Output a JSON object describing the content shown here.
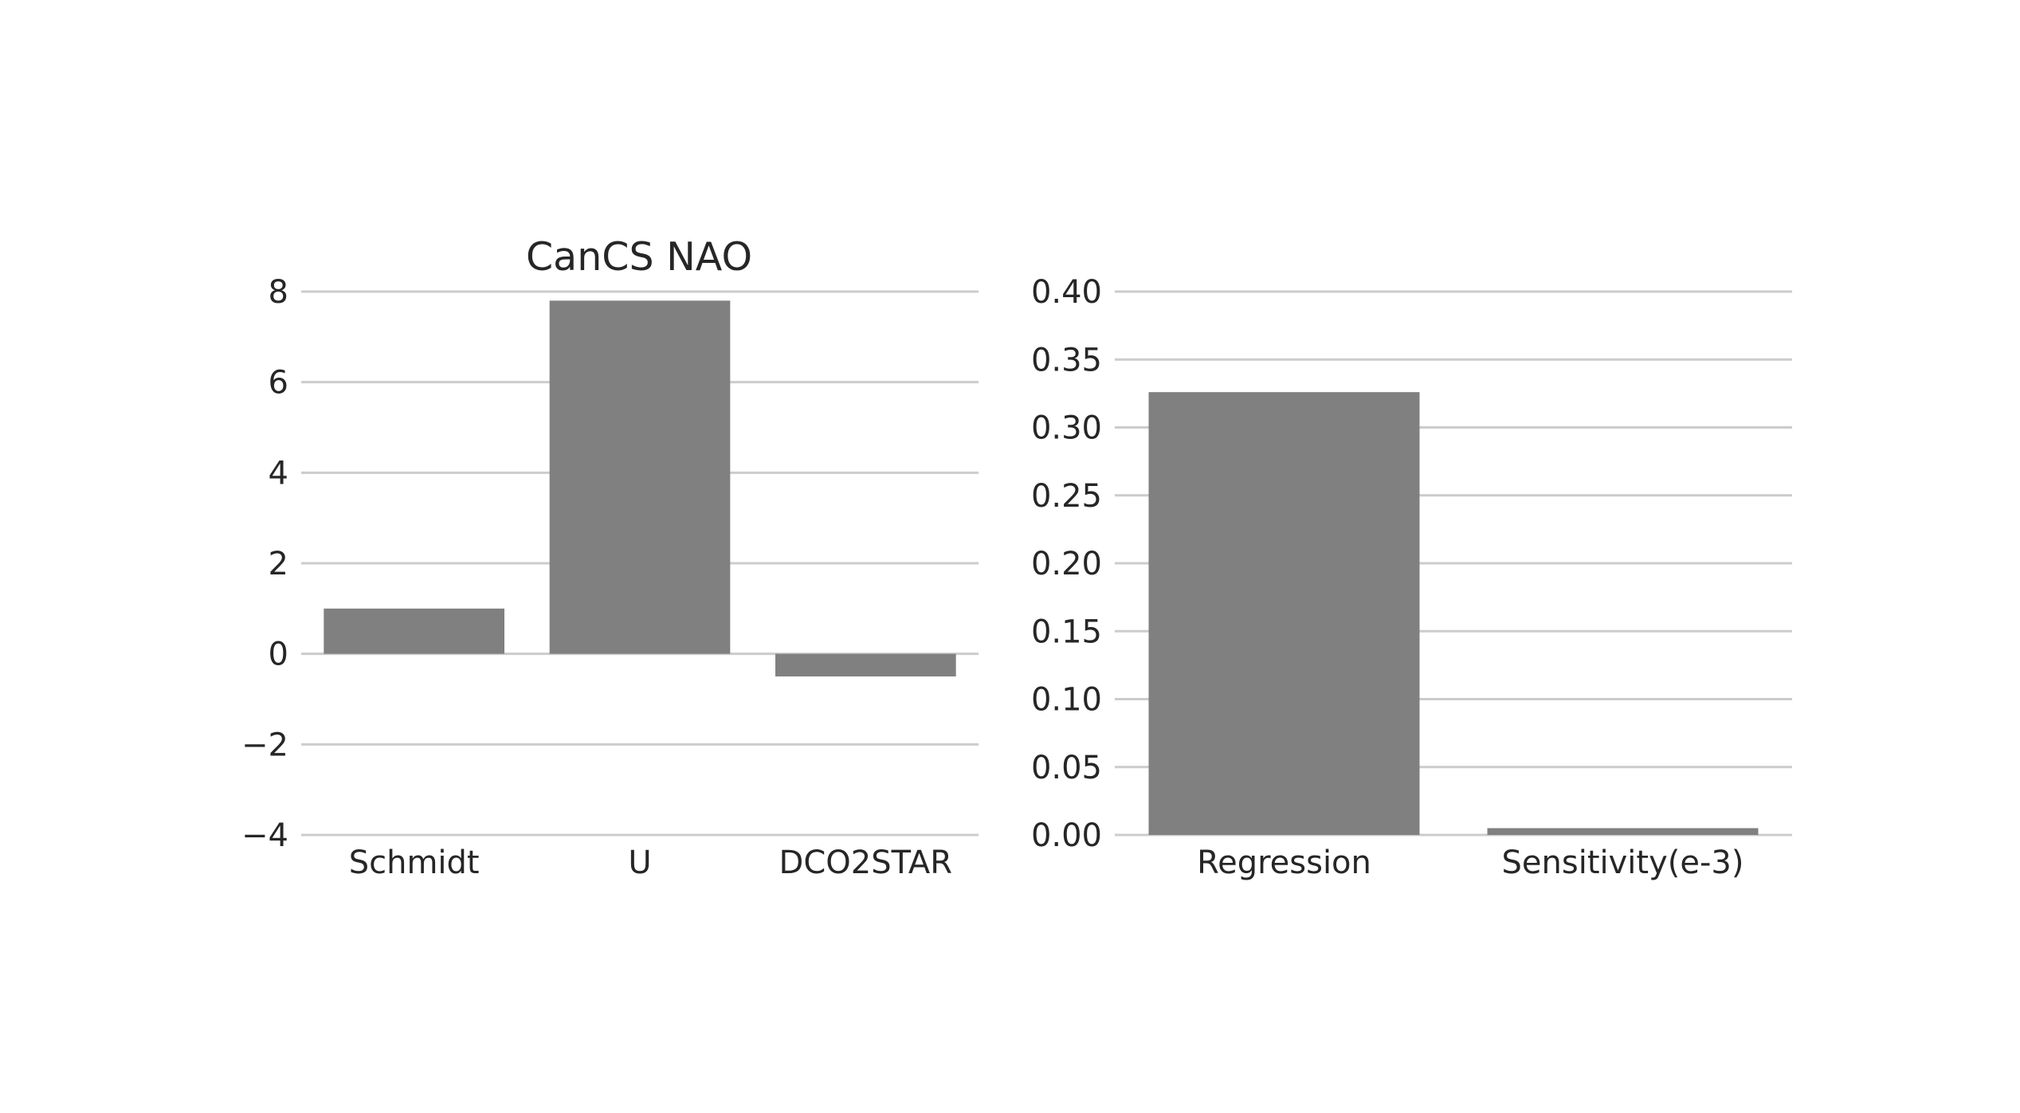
{
  "chart_data": [
    {
      "type": "bar",
      "title": "CanCS NAO",
      "xlabel": "",
      "ylabel": "",
      "categories": [
        "Schmidt",
        "U",
        "DCO2STAR"
      ],
      "values": [
        1.0,
        7.8,
        -0.5
      ],
      "ylim": [
        -4,
        8
      ],
      "yticks": [
        -4,
        -2,
        0,
        2,
        4,
        6,
        8
      ],
      "ytick_labels": [
        "−4",
        "−2",
        "0",
        "2",
        "4",
        "6",
        "8"
      ],
      "grid": "horizontal",
      "bar_color": "#808080"
    },
    {
      "type": "bar",
      "title": "",
      "xlabel": "",
      "ylabel": "",
      "categories": [
        "Regression",
        "Sensitivity(e-3)"
      ],
      "values": [
        0.326,
        0.005
      ],
      "ylim": [
        0,
        0.4
      ],
      "yticks": [
        0,
        0.05,
        0.1,
        0.15,
        0.2,
        0.25,
        0.3,
        0.35,
        0.4
      ],
      "ytick_labels": [
        "0.00",
        "0.05",
        "0.10",
        "0.15",
        "0.20",
        "0.25",
        "0.30",
        "0.35",
        "0.40"
      ],
      "grid": "horizontal",
      "bar_color": "#808080"
    }
  ],
  "colors": {
    "grid": "#cccccc",
    "text": "#262626",
    "background": "#ffffff"
  }
}
